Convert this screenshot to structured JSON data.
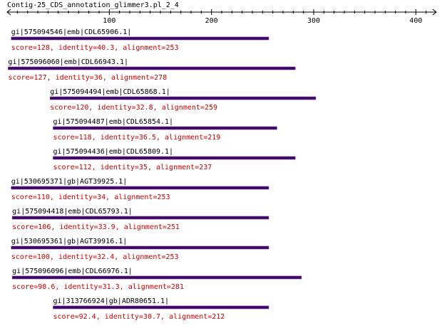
{
  "title": "Contig-25_CDS_annotation_glimmer3.pl_2_4",
  "axis": {
    "min": 0,
    "max": 420,
    "ticks": [
      100,
      200,
      300,
      400
    ]
  },
  "colors": {
    "bar": "#3a0a5e",
    "bar_edge": "#7a2aa8",
    "stats": "#cc0000",
    "label": "#000000"
  },
  "chart_data": {
    "type": "alignment-track",
    "hits": [
      {
        "id": "gi|575094546|emb|CDL65906.1|",
        "start": 4,
        "end": 256,
        "stats": "score=128, identity=40.3, alignment=253"
      },
      {
        "id": "gi|575096060|emb|CDL66943.1|",
        "start": 1,
        "end": 282,
        "stats": "score=127, identity=36, alignment=278"
      },
      {
        "id": "gi|575094494|emb|CDL65868.1|",
        "start": 42,
        "end": 302,
        "stats": "score=120, identity=32.8, alignment=259"
      },
      {
        "id": "gi|575094487|emb|CDL65854.1|",
        "start": 45,
        "end": 264,
        "stats": "score=118, identity=36.5, alignment=219"
      },
      {
        "id": "gi|575094436|emb|CDL65809.1|",
        "start": 45,
        "end": 282,
        "stats": "score=112, identity=35, alignment=237"
      },
      {
        "id": "gi|530695371|gb|AGT39925.1|",
        "start": 4,
        "end": 256,
        "stats": "score=110, identity=34, alignment=253"
      },
      {
        "id": "gi|575094418|emb|CDL65793.1|",
        "start": 5,
        "end": 256,
        "stats": "score=106, identity=33.9, alignment=251"
      },
      {
        "id": "gi|530695361|gb|AGT39916.1|",
        "start": 4,
        "end": 256,
        "stats": "score=100, identity=32.4, alignment=253"
      },
      {
        "id": "gi|575096096|emb|CDL66976.1|",
        "start": 5,
        "end": 288,
        "stats": "score=98.6, identity=31.3, alignment=281"
      },
      {
        "id": "gi|313766924|gb|ADR80651.1|",
        "start": 45,
        "end": 256,
        "stats": "score=92.4, identity=30.7, alignment=212"
      }
    ]
  }
}
